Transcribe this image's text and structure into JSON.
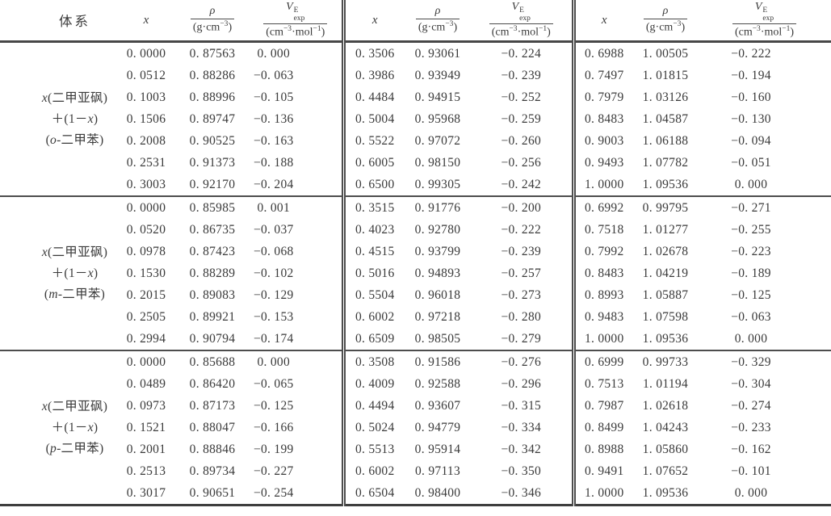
{
  "page": {
    "background": "#ffffff",
    "text_color": "#3a3a3a",
    "rule_color": "#4a4a4a"
  },
  "table": {
    "headers": {
      "system": "体系",
      "x": "x",
      "rho_symbol": "ρ",
      "rho_unit_pre": "(g·cm",
      "rho_unit_exp": "−3",
      "rho_unit_post": ")",
      "v_symbol": "V",
      "v_sup": "E",
      "v_sub": "exp",
      "v_unit_p1": "(cm",
      "v_unit_e1": "−3",
      "v_unit_p2": "·mol",
      "v_unit_e2": "−1",
      "v_unit_p3": ")"
    },
    "sections": [
      {
        "label": {
          "line1_x": "x",
          "line1_rest": "(二甲亚砜)",
          "line2_pre": "＋(1－",
          "line2_x": "x",
          "line2_post": ")",
          "line3_pre": "(",
          "line3_isomer": "o",
          "line3_post": "-二甲苯)"
        },
        "groups": [
          {
            "rows": [
              [
                "0. 0000",
                "0. 87563",
                "0. 000"
              ],
              [
                "0. 0512",
                "0. 88286",
                "−0. 063"
              ],
              [
                "0. 1003",
                "0. 88996",
                "−0. 105"
              ],
              [
                "0. 1506",
                "0. 89747",
                "−0. 136"
              ],
              [
                "0. 2008",
                "0. 90525",
                "−0. 163"
              ],
              [
                "0. 2531",
                "0. 91373",
                "−0. 188"
              ],
              [
                "0. 3003",
                "0. 92170",
                "−0. 204"
              ]
            ]
          },
          {
            "rows": [
              [
                "0. 3506",
                "0. 93061",
                "−0. 224"
              ],
              [
                "0. 3986",
                "0. 93949",
                "−0. 239"
              ],
              [
                "0. 4484",
                "0. 94915",
                "−0. 252"
              ],
              [
                "0. 5004",
                "0. 95968",
                "−0. 259"
              ],
              [
                "0. 5522",
                "0. 97072",
                "−0. 260"
              ],
              [
                "0. 6005",
                "0. 98150",
                "−0. 256"
              ],
              [
                "0. 6500",
                "0. 99305",
                "−0. 242"
              ]
            ]
          },
          {
            "rows": [
              [
                "0. 6988",
                "1. 00505",
                "−0. 222"
              ],
              [
                "0. 7497",
                "1. 01815",
                "−0. 194"
              ],
              [
                "0. 7979",
                "1. 03126",
                "−0. 160"
              ],
              [
                "0. 8483",
                "1. 04587",
                "−0. 130"
              ],
              [
                "0. 9003",
                "1. 06188",
                "−0. 094"
              ],
              [
                "0. 9493",
                "1. 07782",
                "−0. 051"
              ],
              [
                "1. 0000",
                "1. 09536",
                "0. 000"
              ]
            ]
          }
        ]
      },
      {
        "label": {
          "line1_x": "x",
          "line1_rest": "(二甲亚砜)",
          "line2_pre": "＋(1－",
          "line2_x": "x",
          "line2_post": ")",
          "line3_pre": "(",
          "line3_isomer": "m",
          "line3_post": "-二甲苯)"
        },
        "groups": [
          {
            "rows": [
              [
                "0. 0000",
                "0. 85985",
                "0. 001"
              ],
              [
                "0. 0520",
                "0. 86735",
                "−0. 037"
              ],
              [
                "0. 0978",
                "0. 87423",
                "−0. 068"
              ],
              [
                "0. 1530",
                "0. 88289",
                "−0. 102"
              ],
              [
                "0. 2015",
                "0. 89083",
                "−0. 129"
              ],
              [
                "0. 2505",
                "0. 89921",
                "−0. 153"
              ],
              [
                "0. 2994",
                "0. 90794",
                "−0. 174"
              ]
            ]
          },
          {
            "rows": [
              [
                "0. 3515",
                "0. 91776",
                "−0. 200"
              ],
              [
                "0. 4023",
                "0. 92780",
                "−0. 222"
              ],
              [
                "0. 4515",
                "0. 93799",
                "−0. 239"
              ],
              [
                "0. 5016",
                "0. 94893",
                "−0. 257"
              ],
              [
                "0. 5504",
                "0. 96018",
                "−0. 273"
              ],
              [
                "0. 6002",
                "0. 97218",
                "−0. 280"
              ],
              [
                "0. 6509",
                "0. 98505",
                "−0. 279"
              ]
            ]
          },
          {
            "rows": [
              [
                "0. 6992",
                "0. 99795",
                "−0. 271"
              ],
              [
                "0. 7518",
                "1. 01277",
                "−0. 255"
              ],
              [
                "0. 7992",
                "1. 02678",
                "−0. 223"
              ],
              [
                "0. 8483",
                "1. 04219",
                "−0. 189"
              ],
              [
                "0. 8993",
                "1. 05887",
                "−0. 125"
              ],
              [
                "0. 9483",
                "1. 07598",
                "−0. 063"
              ],
              [
                "1. 0000",
                "1. 09536",
                "0. 000"
              ]
            ]
          }
        ]
      },
      {
        "label": {
          "line1_x": "x",
          "line1_rest": "(二甲亚砜)",
          "line2_pre": "＋(1－",
          "line2_x": "x",
          "line2_post": ")",
          "line3_pre": "(",
          "line3_isomer": "p",
          "line3_post": "-二甲苯)"
        },
        "groups": [
          {
            "rows": [
              [
                "0. 0000",
                "0. 85688",
                "0. 000"
              ],
              [
                "0. 0489",
                "0. 86420",
                "−0. 065"
              ],
              [
                "0. 0973",
                "0. 87173",
                "−0. 125"
              ],
              [
                "0. 1521",
                "0. 88047",
                "−0. 166"
              ],
              [
                "0. 2001",
                "0. 88846",
                "−0. 199"
              ],
              [
                "0. 2513",
                "0. 89734",
                "−0. 227"
              ],
              [
                "0. 3017",
                "0. 90651",
                "−0. 254"
              ]
            ]
          },
          {
            "rows": [
              [
                "0. 3508",
                "0. 91586",
                "−0. 276"
              ],
              [
                "0. 4009",
                "0. 92588",
                "−0. 296"
              ],
              [
                "0. 4494",
                "0. 93607",
                "−0. 315"
              ],
              [
                "0. 5024",
                "0. 94779",
                "−0. 334"
              ],
              [
                "0. 5513",
                "0. 95914",
                "−0. 342"
              ],
              [
                "0. 6002",
                "0. 97113",
                "−0. 350"
              ],
              [
                "0. 6504",
                "0. 98400",
                "−0. 346"
              ]
            ]
          },
          {
            "rows": [
              [
                "0. 6999",
                "0. 99733",
                "−0. 329"
              ],
              [
                "0. 7513",
                "1. 01194",
                "−0. 304"
              ],
              [
                "0. 7987",
                "1. 02618",
                "−0. 274"
              ],
              [
                "0. 8499",
                "1. 04243",
                "−0. 233"
              ],
              [
                "0. 8988",
                "1. 05860",
                "−0. 162"
              ],
              [
                "0. 9491",
                "1. 07652",
                "−0. 101"
              ],
              [
                "1. 0000",
                "1. 09536",
                "0. 000"
              ]
            ]
          }
        ]
      }
    ]
  }
}
